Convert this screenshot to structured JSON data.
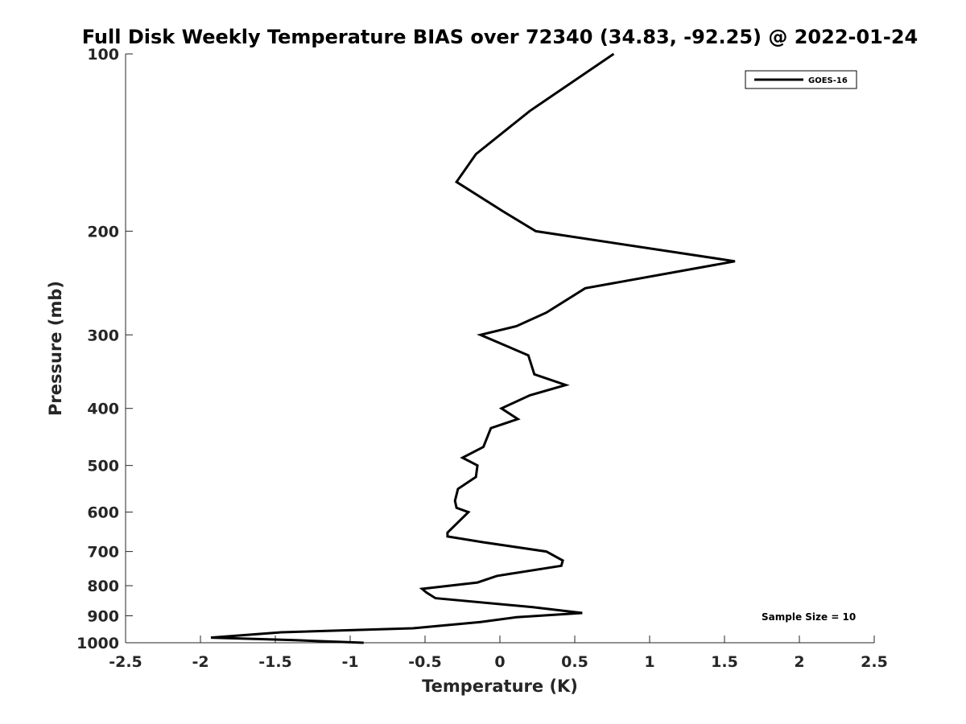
{
  "chart_data": {
    "type": "line",
    "title": "Full Disk Weekly Temperature BIAS over 72340 (34.83, -92.25) @ 2022-01-24",
    "xlabel": "Temperature (K)",
    "ylabel": "Pressure (mb)",
    "xlim": [
      -2.5,
      2.5
    ],
    "ylim": [
      100,
      1000
    ],
    "y_scale": "log",
    "y_reversed": true,
    "x_ticks": [
      "-2.5",
      "-2",
      "-1.5",
      "-1",
      "-0.5",
      "0",
      "0.5",
      "1",
      "1.5",
      "2",
      "2.5"
    ],
    "y_ticks": [
      "100",
      "200",
      "300",
      "400",
      "500",
      "600",
      "700",
      "800",
      "900",
      "1000"
    ],
    "grid": false,
    "legend_position": "top-right",
    "annotation": "Sample Size = 10",
    "series": [
      {
        "name": "GOES-16",
        "color": "#000000",
        "x": [
          0.76,
          0.2,
          -0.16,
          -0.29,
          0.02,
          0.24,
          1.57,
          0.57,
          0.31,
          0.11,
          -0.13,
          0.19,
          0.23,
          0.44,
          0.2,
          0.01,
          0.12,
          -0.06,
          -0.11,
          -0.25,
          -0.15,
          -0.16,
          -0.28,
          -0.3,
          -0.29,
          -0.21,
          -0.35,
          -0.35,
          -0.11,
          0.31,
          0.42,
          0.41,
          -0.02,
          -0.15,
          -0.52,
          -0.49,
          -0.43,
          0.22,
          0.55,
          0.11,
          -0.13,
          -0.58,
          -1.46,
          -1.93,
          -1.37,
          -0.91
        ],
        "y": [
          100,
          125,
          148,
          165,
          185,
          200,
          225,
          250,
          275,
          290,
          300,
          325,
          350,
          365,
          380,
          400,
          417,
          432,
          465,
          485,
          500,
          523,
          548,
          574,
          590,
          600,
          650,
          660,
          675,
          700,
          725,
          740,
          770,
          790,
          810,
          822,
          840,
          870,
          890,
          905,
          922,
          945,
          960,
          980,
          990,
          1000
        ]
      }
    ]
  }
}
